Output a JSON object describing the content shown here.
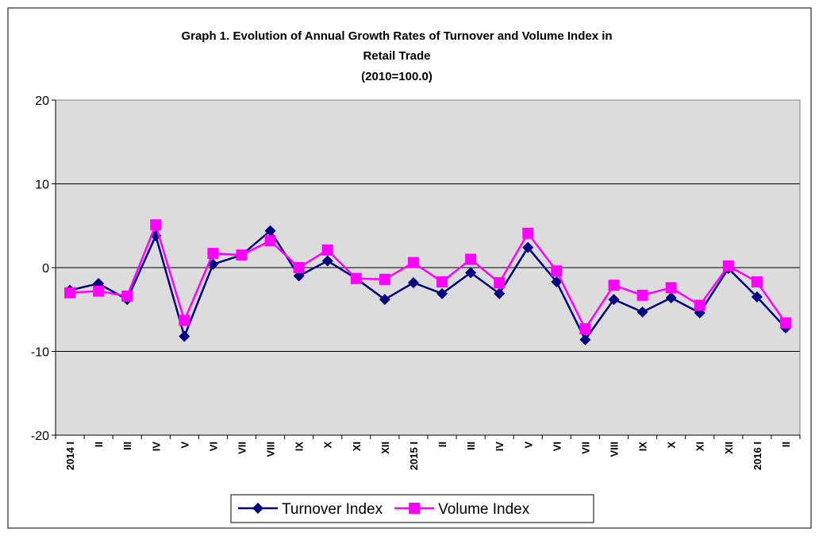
{
  "chart_data": {
    "type": "line",
    "title": "Graph 1. Evolution of Annual Growth Rates of Turnover and Volume Index in",
    "title_line2": "Retail Trade",
    "subtitle": "(2010=100.0)",
    "categories": [
      "2014 I",
      "II",
      "III",
      "IV",
      "V",
      "VI",
      "VII",
      "VIII",
      "IX",
      "X",
      "XI",
      "XII",
      "2015 I",
      "II",
      "III",
      "IV",
      "V",
      "VI",
      "VII",
      "VIII",
      "IX",
      "X",
      "XI",
      "XII",
      "2016 I",
      "II"
    ],
    "series": [
      {
        "name": "Turnover Index",
        "color": "#000080",
        "marker": "diamond",
        "values": [
          -2.7,
          -1.9,
          -3.8,
          3.8,
          -8.2,
          0.4,
          1.5,
          4.4,
          -1.0,
          0.8,
          -1.3,
          -3.8,
          -1.8,
          -3.1,
          -0.6,
          -3.1,
          2.4,
          -1.7,
          -8.6,
          -3.8,
          -5.3,
          -3.6,
          -5.4,
          -0.1,
          -3.5,
          -7.2
        ]
      },
      {
        "name": "Volume Index",
        "color": "#ff00ff",
        "marker": "square",
        "values": [
          -3.0,
          -2.8,
          -3.4,
          5.1,
          -6.3,
          1.7,
          1.5,
          3.2,
          0.0,
          2.1,
          -1.3,
          -1.4,
          0.6,
          -1.7,
          1.0,
          -1.8,
          4.1,
          -0.4,
          -7.3,
          -2.1,
          -3.3,
          -2.4,
          -4.5,
          0.2,
          -1.7,
          -6.6
        ]
      }
    ],
    "ylim": [
      -20,
      20
    ],
    "yticks": [
      -20,
      -10,
      0,
      10,
      20
    ],
    "grid": true,
    "legend": "bottom"
  }
}
